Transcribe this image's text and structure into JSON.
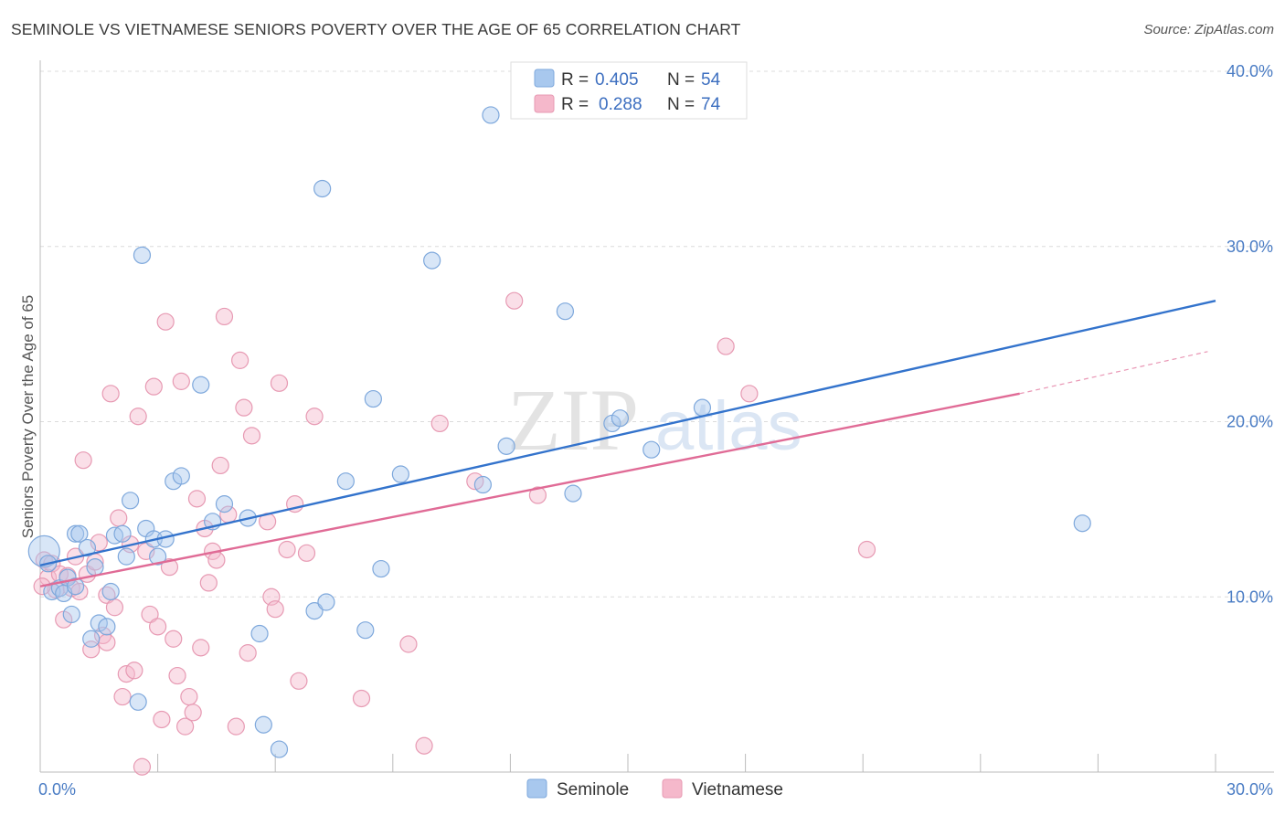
{
  "title": "SEMINOLE VS VIETNAMESE SENIORS POVERTY OVER THE AGE OF 65 CORRELATION CHART",
  "source": "Source: ZipAtlas.com",
  "watermark": {
    "zip": "ZIP",
    "atlas": "atlas"
  },
  "colors": {
    "seminole": "#a8c8ee",
    "seminole_line": "#3373cc",
    "vietnamese": "#f5b8cb",
    "vietnamese_line": "#e06b96",
    "tick": "#4a7cc4"
  },
  "legend": {
    "r_label": "R =",
    "n_label": "N =",
    "seminole": {
      "r": "0.405",
      "n": "54"
    },
    "vietnamese": {
      "r": "0.288",
      "n": "74"
    }
  },
  "bottom_legend": [
    "Seminole",
    "Vietnamese"
  ],
  "chart_data": {
    "type": "scatter",
    "title": "SEMINOLE VS VIETNAMESE SENIORS POVERTY OVER THE AGE OF 65 CORRELATION CHART",
    "xlabel": "",
    "ylabel": "Seniors Poverty Over the Age of 65",
    "xlim": [
      0,
      30
    ],
    "ylim": [
      0,
      40
    ],
    "x_tick_labels": [
      "0.0%",
      "30.0%"
    ],
    "y_ticks": [
      10,
      20,
      30,
      40
    ],
    "y_tick_labels": [
      "10.0%",
      "20.0%",
      "30.0%",
      "40.0%"
    ],
    "legend_position": "top-center",
    "grid": true,
    "series": [
      {
        "name": "Seminole",
        "r": 0.405,
        "n": 54,
        "trend": [
          [
            0,
            11.8
          ],
          [
            30,
            26.9
          ]
        ],
        "points": [
          [
            0.1,
            12.6
          ],
          [
            0.3,
            10.3
          ],
          [
            0.5,
            10.5
          ],
          [
            0.6,
            10.2
          ],
          [
            0.7,
            11.1
          ],
          [
            0.8,
            9.0
          ],
          [
            0.9,
            10.6
          ],
          [
            0.9,
            13.6
          ],
          [
            1.0,
            13.6
          ],
          [
            1.2,
            12.8
          ],
          [
            1.3,
            7.6
          ],
          [
            1.4,
            11.7
          ],
          [
            1.5,
            8.5
          ],
          [
            1.7,
            8.3
          ],
          [
            1.8,
            10.3
          ],
          [
            1.9,
            13.5
          ],
          [
            2.1,
            13.6
          ],
          [
            2.2,
            12.3
          ],
          [
            2.3,
            15.5
          ],
          [
            2.5,
            4.0
          ],
          [
            2.6,
            29.5
          ],
          [
            2.7,
            13.9
          ],
          [
            2.9,
            13.3
          ],
          [
            3.0,
            12.3
          ],
          [
            3.2,
            13.3
          ],
          [
            3.4,
            16.6
          ],
          [
            3.6,
            16.9
          ],
          [
            4.1,
            22.1
          ],
          [
            4.4,
            14.3
          ],
          [
            4.7,
            15.3
          ],
          [
            5.3,
            14.5
          ],
          [
            5.6,
            7.9
          ],
          [
            5.7,
            2.7
          ],
          [
            6.1,
            1.3
          ],
          [
            7.0,
            9.2
          ],
          [
            7.2,
            33.3
          ],
          [
            7.3,
            9.7
          ],
          [
            7.8,
            16.6
          ],
          [
            8.3,
            8.1
          ],
          [
            8.5,
            21.3
          ],
          [
            8.7,
            11.6
          ],
          [
            9.2,
            17.0
          ],
          [
            10.0,
            29.2
          ],
          [
            11.3,
            16.4
          ],
          [
            11.5,
            37.5
          ],
          [
            11.9,
            18.6
          ],
          [
            13.4,
            26.3
          ],
          [
            13.6,
            15.9
          ],
          [
            14.6,
            19.9
          ],
          [
            14.8,
            20.2
          ],
          [
            15.6,
            18.4
          ],
          [
            16.9,
            20.8
          ],
          [
            26.6,
            14.2
          ],
          [
            0.2,
            11.9
          ]
        ]
      },
      {
        "name": "Vietnamese",
        "r": 0.288,
        "n": 74,
        "trend": [
          [
            0,
            10.6
          ],
          [
            25,
            21.6
          ]
        ],
        "trend_dashed": [
          [
            25,
            21.6
          ],
          [
            29.8,
            24.0
          ]
        ],
        "points": [
          [
            0.1,
            12.1
          ],
          [
            0.2,
            11.1
          ],
          [
            0.3,
            11.9
          ],
          [
            0.4,
            10.4
          ],
          [
            0.5,
            11.3
          ],
          [
            0.6,
            8.7
          ],
          [
            0.7,
            11.2
          ],
          [
            0.8,
            10.5
          ],
          [
            0.9,
            12.3
          ],
          [
            1.0,
            10.3
          ],
          [
            1.1,
            17.8
          ],
          [
            1.2,
            11.3
          ],
          [
            1.3,
            7.0
          ],
          [
            1.4,
            12.0
          ],
          [
            1.5,
            13.1
          ],
          [
            1.6,
            7.8
          ],
          [
            1.7,
            7.4
          ],
          [
            1.7,
            10.1
          ],
          [
            1.8,
            21.6
          ],
          [
            1.9,
            9.4
          ],
          [
            2.0,
            14.5
          ],
          [
            2.1,
            4.3
          ],
          [
            2.2,
            5.6
          ],
          [
            2.3,
            13.0
          ],
          [
            2.4,
            5.8
          ],
          [
            2.5,
            20.3
          ],
          [
            2.6,
            0.3
          ],
          [
            2.7,
            12.6
          ],
          [
            2.8,
            9.0
          ],
          [
            2.9,
            22.0
          ],
          [
            3.0,
            8.3
          ],
          [
            3.1,
            3.0
          ],
          [
            3.2,
            25.7
          ],
          [
            3.3,
            11.7
          ],
          [
            3.4,
            7.6
          ],
          [
            3.5,
            5.5
          ],
          [
            3.6,
            22.3
          ],
          [
            3.7,
            2.6
          ],
          [
            3.8,
            4.3
          ],
          [
            3.9,
            3.4
          ],
          [
            4.0,
            15.6
          ],
          [
            4.1,
            7.1
          ],
          [
            4.2,
            13.9
          ],
          [
            4.3,
            10.8
          ],
          [
            4.4,
            12.6
          ],
          [
            4.5,
            12.1
          ],
          [
            4.6,
            17.5
          ],
          [
            4.7,
            26.0
          ],
          [
            4.8,
            14.7
          ],
          [
            5.0,
            2.6
          ],
          [
            5.1,
            23.5
          ],
          [
            5.2,
            20.8
          ],
          [
            5.3,
            6.8
          ],
          [
            5.4,
            19.2
          ],
          [
            5.8,
            14.3
          ],
          [
            5.9,
            10.0
          ],
          [
            6.0,
            9.3
          ],
          [
            6.1,
            22.2
          ],
          [
            6.3,
            12.7
          ],
          [
            6.5,
            15.3
          ],
          [
            6.6,
            5.2
          ],
          [
            6.8,
            12.5
          ],
          [
            7.0,
            20.3
          ],
          [
            8.2,
            4.2
          ],
          [
            9.4,
            7.3
          ],
          [
            9.8,
            1.5
          ],
          [
            10.2,
            19.9
          ],
          [
            11.1,
            16.6
          ],
          [
            12.1,
            26.9
          ],
          [
            12.7,
            15.8
          ],
          [
            17.5,
            24.3
          ],
          [
            18.1,
            21.6
          ],
          [
            21.1,
            12.7
          ],
          [
            0.05,
            10.6
          ]
        ]
      }
    ]
  }
}
